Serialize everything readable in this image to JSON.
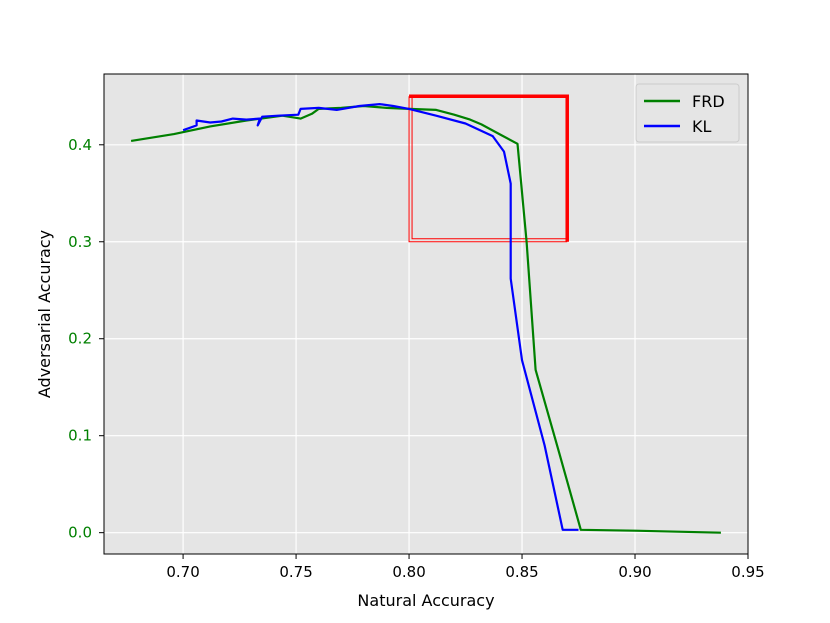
{
  "chart_data": {
    "type": "line",
    "title": "",
    "xlabel": "Natural Accuracy",
    "ylabel": "Adversarial Accuracy",
    "xlim": [
      0.665,
      0.95
    ],
    "ylim": [
      -0.022,
      0.473
    ],
    "xticks": [
      0.7,
      0.75,
      0.8,
      0.85,
      0.9,
      0.95
    ],
    "xtick_labels": [
      "0.70",
      "0.75",
      "0.80",
      "0.85",
      "0.90",
      "0.95"
    ],
    "yticks": [
      0.0,
      0.1,
      0.2,
      0.3,
      0.4
    ],
    "ytick_labels": [
      "0.0",
      "0.1",
      "0.2",
      "0.3",
      "0.4"
    ],
    "ytick_color": "#008000",
    "ylabel_color": "#000000",
    "grid": true,
    "background": "#e5e5e5",
    "legend_position": "top-right",
    "series": [
      {
        "name": "FRD",
        "color": "#008000",
        "points": [
          [
            0.677,
            0.404
          ],
          [
            0.696,
            0.411
          ],
          [
            0.712,
            0.419
          ],
          [
            0.728,
            0.425
          ],
          [
            0.744,
            0.43
          ],
          [
            0.752,
            0.427
          ],
          [
            0.757,
            0.432
          ],
          [
            0.76,
            0.437
          ],
          [
            0.77,
            0.438
          ],
          [
            0.78,
            0.44
          ],
          [
            0.79,
            0.438
          ],
          [
            0.8,
            0.437
          ],
          [
            0.812,
            0.436
          ],
          [
            0.82,
            0.431
          ],
          [
            0.827,
            0.426
          ],
          [
            0.832,
            0.421
          ],
          [
            0.84,
            0.411
          ],
          [
            0.848,
            0.401
          ],
          [
            0.852,
            0.3
          ],
          [
            0.856,
            0.168
          ],
          [
            0.866,
            0.086
          ],
          [
            0.876,
            0.003
          ],
          [
            0.9,
            0.002
          ],
          [
            0.938,
            0.0
          ]
        ]
      },
      {
        "name": "KL",
        "color": "#0000ff",
        "points": [
          [
            0.7,
            0.415
          ],
          [
            0.706,
            0.42
          ],
          [
            0.706,
            0.425
          ],
          [
            0.712,
            0.423
          ],
          [
            0.717,
            0.424
          ],
          [
            0.722,
            0.427
          ],
          [
            0.728,
            0.426
          ],
          [
            0.734,
            0.427
          ],
          [
            0.733,
            0.42
          ],
          [
            0.735,
            0.429
          ],
          [
            0.742,
            0.43
          ],
          [
            0.751,
            0.431
          ],
          [
            0.752,
            0.437
          ],
          [
            0.76,
            0.438
          ],
          [
            0.768,
            0.436
          ],
          [
            0.778,
            0.44
          ],
          [
            0.787,
            0.442
          ],
          [
            0.793,
            0.44
          ],
          [
            0.8,
            0.437
          ],
          [
            0.812,
            0.43
          ],
          [
            0.825,
            0.422
          ],
          [
            0.837,
            0.409
          ],
          [
            0.842,
            0.393
          ],
          [
            0.845,
            0.36
          ],
          [
            0.845,
            0.262
          ],
          [
            0.85,
            0.178
          ],
          [
            0.86,
            0.09
          ],
          [
            0.868,
            0.003
          ],
          [
            0.875,
            0.003
          ]
        ]
      }
    ],
    "annotations": [
      {
        "type": "rectangle",
        "x0": 0.8,
        "x1": 0.87,
        "y0": 0.3,
        "y1": 0.45,
        "color": "#ff0000"
      }
    ]
  }
}
